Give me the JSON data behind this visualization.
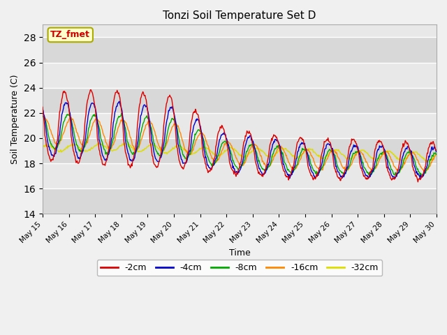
{
  "title": "Tonzi Soil Temperature Set D",
  "xlabel": "Time",
  "ylabel": "Soil Temperature (C)",
  "ylim": [
    14,
    29
  ],
  "yticks": [
    14,
    16,
    18,
    20,
    22,
    24,
    26,
    28
  ],
  "annotation_text": "TZ_fmet",
  "annotation_color": "#cc0000",
  "annotation_bg": "#ffffcc",
  "annotation_border": "#aaaa00",
  "legend_entries": [
    "-2cm",
    "-4cm",
    "-8cm",
    "-16cm",
    "-32cm"
  ],
  "line_colors": [
    "#dd0000",
    "#0000cc",
    "#00aa00",
    "#ff8800",
    "#dddd00"
  ],
  "fig_bg": "#f0f0f0",
  "plot_bg": "#e8e8e8",
  "start_day": 15,
  "n_days": 15
}
